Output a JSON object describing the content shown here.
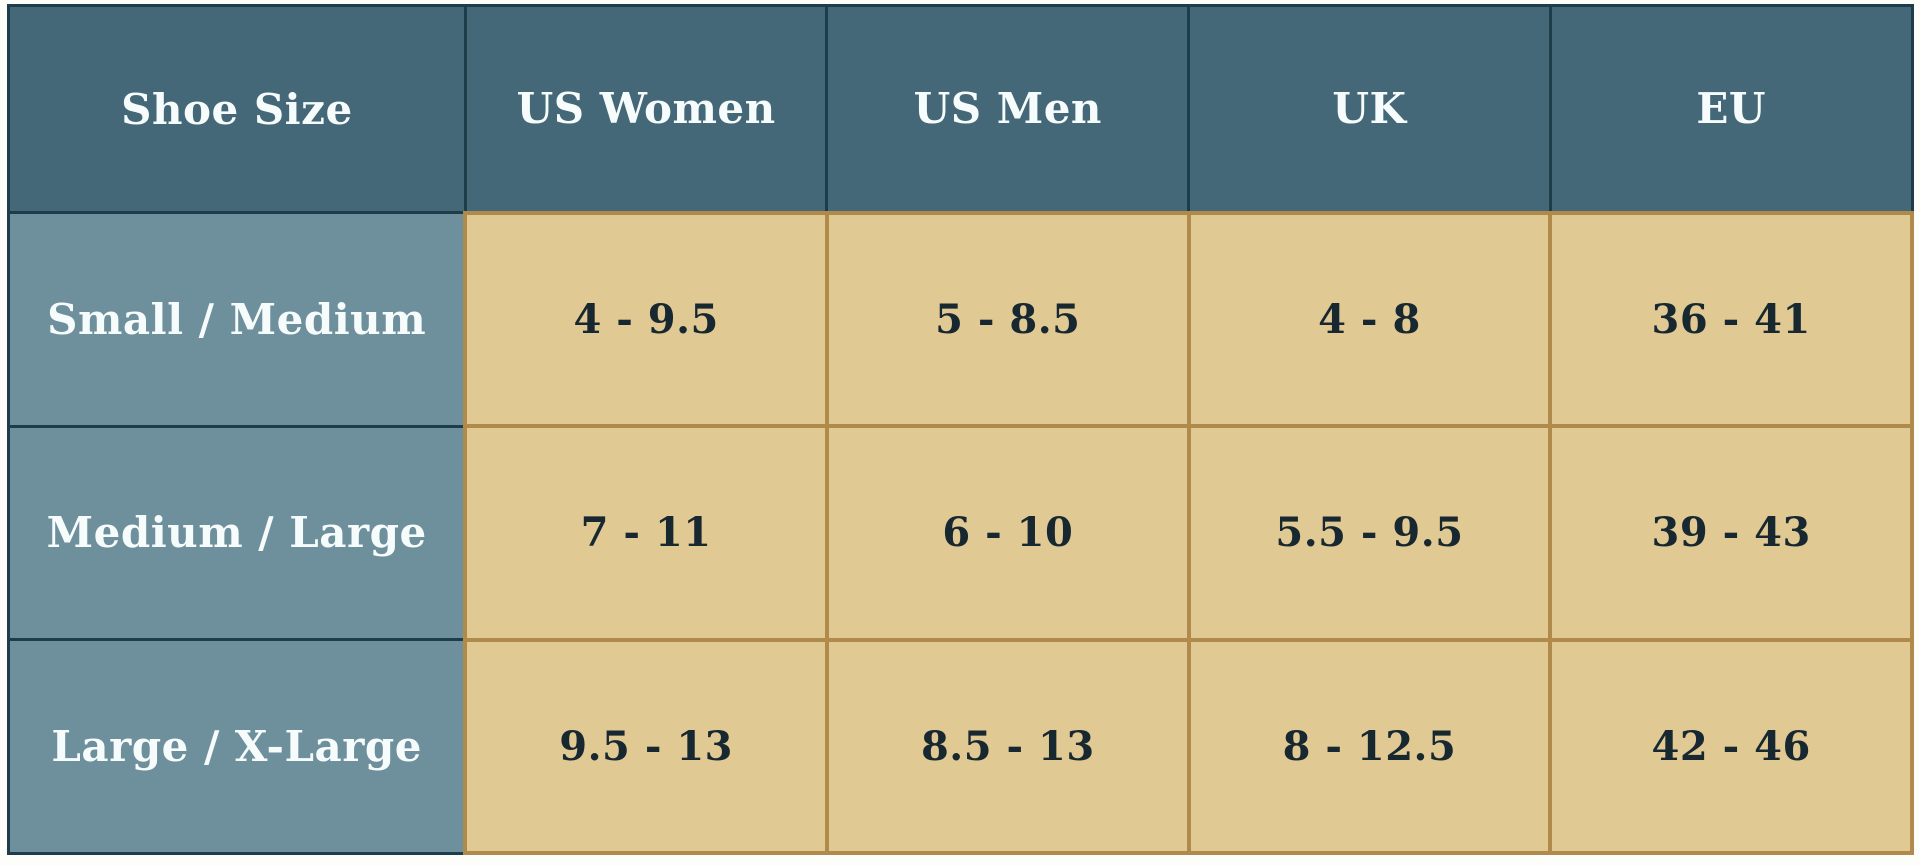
{
  "chart_data": {
    "type": "table",
    "columns": [
      "Shoe Size",
      "US Women",
      "US Men",
      "UK",
      "EU"
    ],
    "rows": [
      {
        "label": "Small / Medium",
        "values": [
          "4 - 9.5",
          "5 - 8.5",
          "4 - 8",
          "36 - 41"
        ]
      },
      {
        "label": "Medium / Large",
        "values": [
          "7 - 11",
          "6 - 10",
          "5.5 - 9.5",
          "39 - 43"
        ]
      },
      {
        "label": "Large / X-Large",
        "values": [
          "9.5 - 13",
          "8.5 - 13",
          "8 - 12.5",
          "42 - 46"
        ]
      }
    ]
  },
  "colors": {
    "header_bg": "#446877",
    "label_bg": "#6e8f9c",
    "cell_bg": "#e1c994",
    "tan_border": "#b08a4a",
    "dark_border": "#1d3d4b",
    "header_text": "#f6fbfb",
    "value_text": "#182830"
  }
}
